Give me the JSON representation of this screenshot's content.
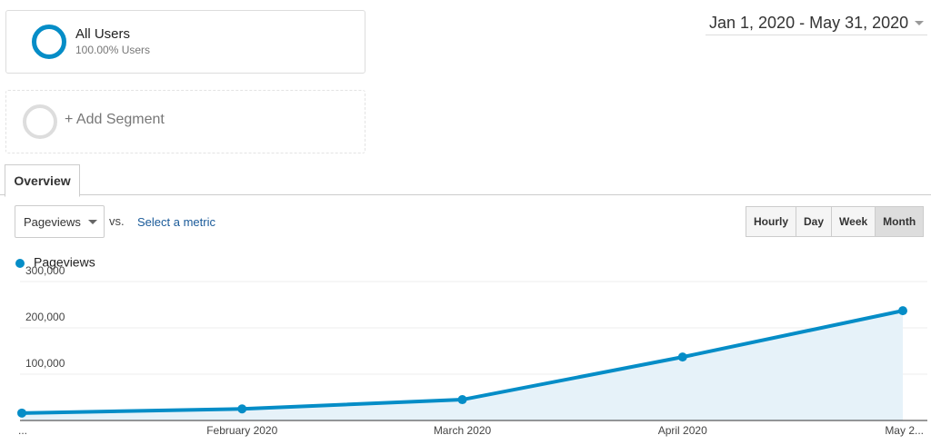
{
  "segments": [
    {
      "title": "All Users",
      "subtitle": "100.00% Users"
    },
    {
      "title": "+ Add Segment"
    }
  ],
  "date_range": "Jan 1, 2020 - May 31, 2020",
  "tabs": [
    "Overview"
  ],
  "metric_selector": {
    "metric": "Pageviews",
    "vs": "vs.",
    "compare": "Select a metric"
  },
  "granularity": [
    "Hourly",
    "Day",
    "Week",
    "Month"
  ],
  "chart_data": {
    "type": "line",
    "categories": [
      "...",
      "February 2020",
      "March 2020",
      "April 2020",
      "May 2..."
    ],
    "series": [
      {
        "name": "Pageviews",
        "color": "#058dc7",
        "values": [
          16000,
          25000,
          45000,
          137000,
          237000
        ]
      }
    ],
    "ylim": [
      0,
      300000
    ],
    "yticks": [
      {
        "value": 100000,
        "label": "100,000"
      },
      {
        "value": 200000,
        "label": "200,000"
      },
      {
        "value": 300000,
        "label": "300,000"
      }
    ],
    "grid": true,
    "area": true
  }
}
